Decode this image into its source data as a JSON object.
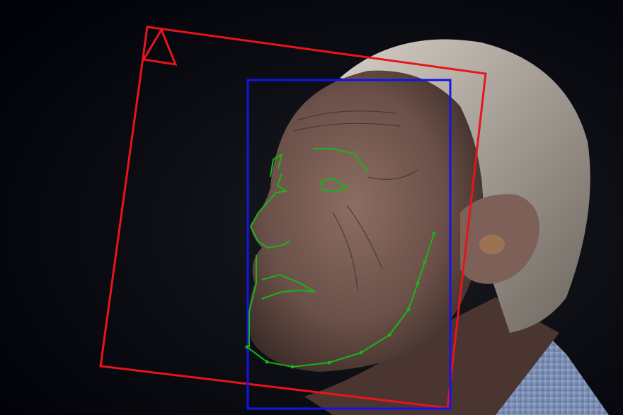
{
  "overlays": {
    "head_pose_box": {
      "color": "#e8141c"
    },
    "face_box": {
      "color": "#1414e6"
    },
    "landmarks": {
      "color": "#19b419"
    }
  },
  "colors": {
    "background": "#05070d",
    "skin": "#7a5f55",
    "skin_shadow": "#3d2c27",
    "hair": "#b9b2aa",
    "shirt": "#8ea3c8"
  }
}
